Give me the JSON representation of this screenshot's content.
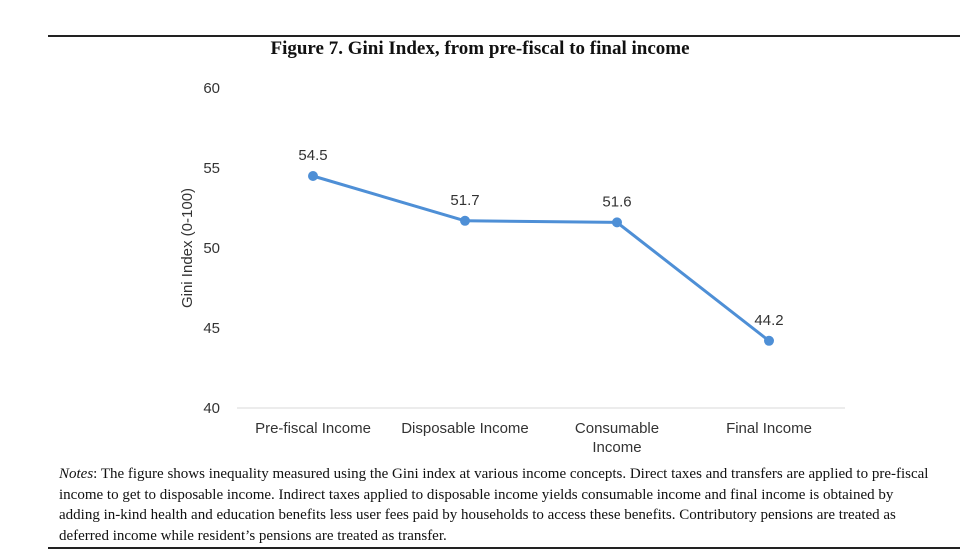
{
  "figure": {
    "title": "Figure 7. Gini Index, from pre-fiscal to final income"
  },
  "chart_data": {
    "type": "line",
    "title": "Figure 7. Gini Index, from pre-fiscal to final income",
    "ylabel": "Gini Index (0-100)",
    "xlabel": "",
    "categories": [
      "Pre-fiscal Income",
      "Disposable Income",
      "Consumable Income",
      "Final Income"
    ],
    "category_lines": [
      [
        "Pre-fiscal Income"
      ],
      [
        "Disposable Income"
      ],
      [
        "Consumable",
        "Income"
      ],
      [
        "Final Income"
      ]
    ],
    "values": [
      54.5,
      51.7,
      51.6,
      44.2
    ],
    "data_labels": [
      "54.5",
      "51.7",
      "51.6",
      "44.2"
    ],
    "ylim": [
      40,
      60
    ],
    "yticks": [
      40,
      45,
      50,
      55,
      60
    ],
    "grid": false,
    "legend": "none",
    "line_color": "#4e8fd6"
  },
  "notes": {
    "label": "Notes",
    "text": ": The figure shows inequality measured using the Gini index at various income concepts. Direct taxes and transfers are applied to pre-fiscal income to get to disposable income. Indirect taxes applied to disposable income yields consumable income and final income is obtained by adding in-kind health and education benefits less user fees paid by households to access these benefits. Contributory pensions are treated as deferred income while resident’s pensions are treated as transfer."
  }
}
